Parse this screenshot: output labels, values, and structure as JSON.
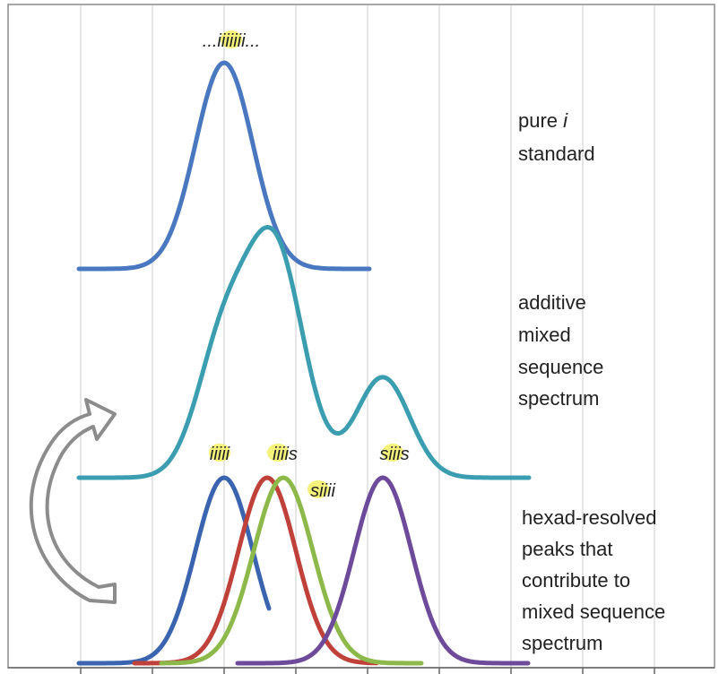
{
  "peak_labels": {
    "top": "...iiiiiii...",
    "iiiii": "iiiii",
    "iiiis": "iiiis",
    "siiii": "siiii",
    "siiis": "siiis"
  },
  "captions": {
    "pure_standard": {
      "line1": "pure",
      "symbol": "i",
      "line2": "standard"
    },
    "additive": [
      "additive",
      "mixed",
      "sequence",
      "spectrum"
    ],
    "hexad": [
      "hexad-resolved",
      "peaks that",
      "contribute to",
      "mixed sequence",
      "spectrum"
    ]
  }
}
